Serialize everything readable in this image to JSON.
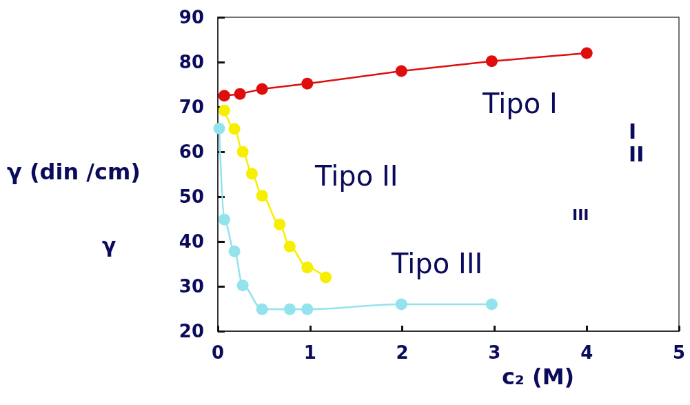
{
  "chart_data": {
    "type": "line",
    "xlabel": "c₂ (M)",
    "ylabel": "γ (din /cm)",
    "xlim": [
      0,
      5
    ],
    "xticks": [
      0,
      1,
      2,
      3,
      4,
      5
    ],
    "ylim": [
      20,
      90
    ],
    "yticks": [
      20,
      30,
      40,
      50,
      60,
      70,
      80,
      90
    ],
    "grid": false,
    "marker": "circle",
    "line_style": "solid",
    "series": [
      {
        "color": "#e00d0d",
        "x": [
          0.07,
          0.24,
          0.48,
          0.97,
          1.99,
          2.97,
          4.0
        ],
        "values": [
          72.5,
          72.9,
          74,
          75.2,
          78,
          80.2,
          82
        ]
      },
      {
        "color": "#f7ef00",
        "x": [
          0.07,
          0.18,
          0.27,
          0.37,
          0.48,
          0.67,
          0.78,
          0.97,
          1.17
        ],
        "values": [
          69.2,
          65.1,
          60,
          55.1,
          50.2,
          43.8,
          38.9,
          34.2,
          32
        ]
      },
      {
        "color": "#93e3ed",
        "x": [
          0.015,
          0.07,
          0.18,
          0.27,
          0.48,
          0.78,
          0.97,
          1.99,
          2.97
        ],
        "values": [
          65.2,
          44.9,
          37.8,
          30.2,
          24.9,
          24.9,
          24.9,
          26,
          26
        ]
      }
    ],
    "annotations": [
      "Tipo I",
      "Tipo II",
      "Tipo III",
      "γ",
      "I",
      "II",
      "III"
    ]
  }
}
